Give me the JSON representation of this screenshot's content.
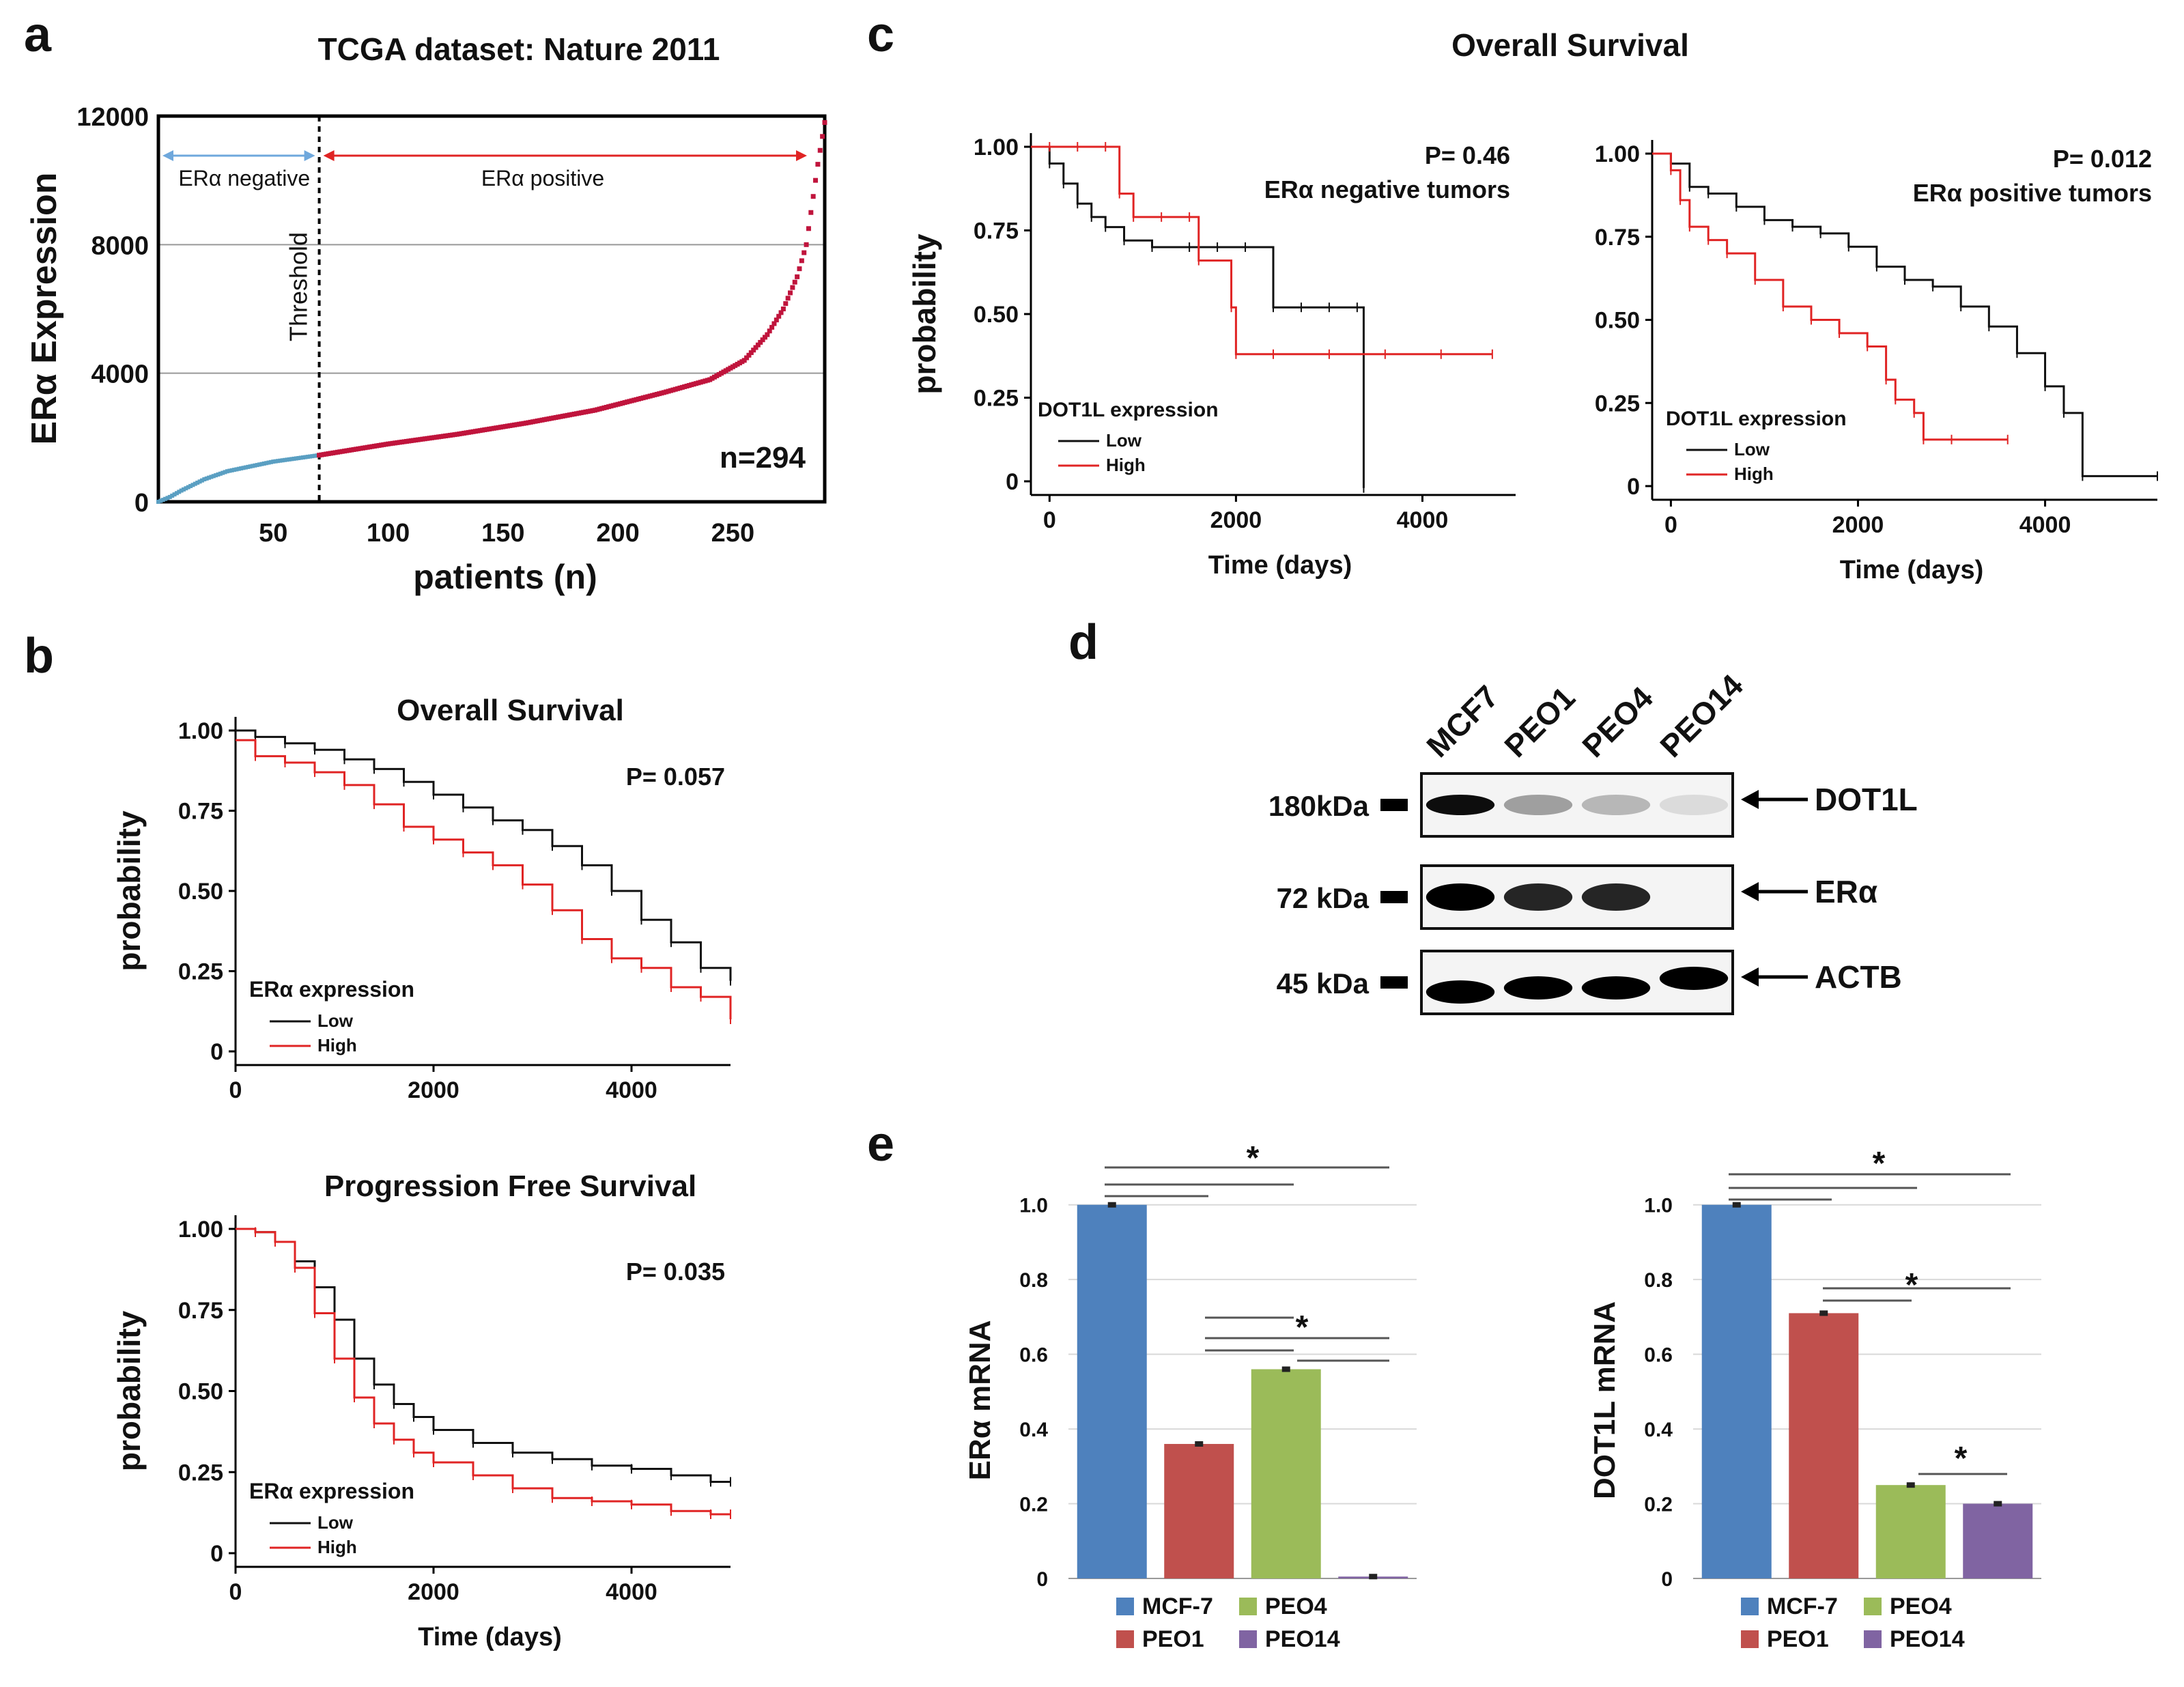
{
  "panels": {
    "a": "a",
    "b": "b",
    "c": "c",
    "d": "d",
    "e": "e"
  },
  "colors": {
    "low": "#111111",
    "high": "#e02424",
    "er_neg": "#5a9fc2",
    "er_pos": "#c0143c",
    "mcf7": "#4e81bd",
    "peo1": "#c0504d",
    "peo4": "#9bbb59",
    "peo14": "#8064a2",
    "arrow_neg": "#6fa8dc",
    "arrow_pos": "#e02424"
  },
  "chart_data": [
    {
      "id": "a",
      "type": "scatter",
      "title": "TCGA dataset: Nature 2011",
      "xlabel": "patients (n)",
      "ylabel": "ERα Expression",
      "xlim": [
        0,
        290
      ],
      "ylim": [
        0,
        12000
      ],
      "xticks": [
        "50",
        "100",
        "150",
        "200",
        "250"
      ],
      "yticks": [
        "0",
        "4000",
        "8000",
        "12000"
      ],
      "threshold_x": 70,
      "threshold_label": "Threshold",
      "neg_label": "ERα negative",
      "pos_label": "ERα positive",
      "n_label": "n=294",
      "neg_curve_x": [
        0,
        5,
        10,
        20,
        30,
        40,
        50,
        60,
        70
      ],
      "neg_curve_y": [
        0,
        150,
        350,
        700,
        950,
        1100,
        1250,
        1350,
        1450
      ],
      "pos_curve_x": [
        70,
        100,
        130,
        160,
        190,
        220,
        240,
        255,
        265,
        272,
        278,
        282,
        285,
        287,
        290
      ],
      "pos_curve_y": [
        1450,
        1800,
        2100,
        2450,
        2850,
        3400,
        3800,
        4400,
        5200,
        6000,
        7000,
        8000,
        9500,
        10500,
        11800
      ]
    },
    {
      "id": "b1",
      "type": "line",
      "title": "Overall Survival",
      "pvalue": "P= 0.057",
      "ylabel": "probability",
      "xlabel": "",
      "xlim": [
        0,
        5000
      ],
      "ylim": [
        0,
        1
      ],
      "xticks": [
        "0",
        "2000",
        "4000"
      ],
      "yticks": [
        "0",
        "0.25",
        "0.50",
        "0.75",
        "1.00"
      ],
      "legend_title": "ERα expression",
      "legend": [
        "Low",
        "High"
      ],
      "series": [
        {
          "name": "Low",
          "x": [
            0,
            200,
            500,
            800,
            1100,
            1400,
            1700,
            2000,
            2300,
            2600,
            2900,
            3200,
            3500,
            3800,
            4100,
            4400,
            4700,
            5000
          ],
          "y": [
            1.0,
            0.98,
            0.96,
            0.94,
            0.91,
            0.88,
            0.84,
            0.8,
            0.76,
            0.72,
            0.69,
            0.64,
            0.58,
            0.5,
            0.41,
            0.34,
            0.26,
            0.22
          ]
        },
        {
          "name": "High",
          "x": [
            0,
            200,
            500,
            800,
            1100,
            1400,
            1700,
            2000,
            2300,
            2600,
            2900,
            3200,
            3500,
            3800,
            4100,
            4400,
            4700,
            5000
          ],
          "y": [
            0.97,
            0.92,
            0.9,
            0.87,
            0.83,
            0.77,
            0.7,
            0.66,
            0.62,
            0.58,
            0.52,
            0.44,
            0.35,
            0.29,
            0.26,
            0.2,
            0.17,
            0.1
          ]
        }
      ]
    },
    {
      "id": "b2",
      "type": "line",
      "title": "Progression Free Survival",
      "pvalue": "P= 0.035",
      "ylabel": "probability",
      "xlabel": "Time (days)",
      "xlim": [
        0,
        5000
      ],
      "ylim": [
        0,
        1
      ],
      "xticks": [
        "0",
        "2000",
        "4000"
      ],
      "yticks": [
        "0",
        "0.25",
        "0.50",
        "0.75",
        "1.00"
      ],
      "legend_title": "ERα expression",
      "legend": [
        "Low",
        "High"
      ],
      "series": [
        {
          "name": "Low",
          "x": [
            0,
            200,
            400,
            600,
            800,
            1000,
            1200,
            1400,
            1600,
            1800,
            2000,
            2400,
            2800,
            3200,
            3600,
            4000,
            4400,
            4800,
            5000
          ],
          "y": [
            1.0,
            0.99,
            0.96,
            0.9,
            0.82,
            0.72,
            0.6,
            0.52,
            0.46,
            0.42,
            0.38,
            0.34,
            0.31,
            0.29,
            0.27,
            0.26,
            0.24,
            0.22,
            0.22
          ]
        },
        {
          "name": "High",
          "x": [
            0,
            200,
            400,
            600,
            800,
            1000,
            1200,
            1400,
            1600,
            1800,
            2000,
            2400,
            2800,
            3200,
            3600,
            4000,
            4400,
            4800,
            5000
          ],
          "y": [
            1.0,
            0.99,
            0.96,
            0.88,
            0.74,
            0.6,
            0.48,
            0.4,
            0.35,
            0.31,
            0.28,
            0.24,
            0.2,
            0.17,
            0.16,
            0.15,
            0.13,
            0.12,
            0.12
          ]
        }
      ]
    },
    {
      "id": "c1",
      "type": "line",
      "title": "Overall Survival",
      "pvalue": "P= 0.46",
      "subtitle": "ERα negative tumors",
      "ylabel": "probability",
      "xlabel": "Time (days)",
      "xlim": [
        -200,
        5000
      ],
      "ylim": [
        0,
        1.03
      ],
      "xticks": [
        "0",
        "2000",
        "4000"
      ],
      "yticks": [
        "0",
        "0.25",
        "0.50",
        "0.75",
        "1.00"
      ],
      "legend_title": "DOT1L expression",
      "legend": [
        "Low",
        "High"
      ],
      "series": [
        {
          "name": "Low",
          "x": [
            -200,
            0,
            150,
            300,
            450,
            600,
            800,
            1100,
            1500,
            1800,
            2100,
            2400,
            2700,
            3000,
            3300,
            3370
          ],
          "y": [
            1.0,
            0.95,
            0.89,
            0.83,
            0.79,
            0.76,
            0.72,
            0.7,
            0.7,
            0.7,
            0.7,
            0.52,
            0.52,
            0.52,
            0.52,
            -0.02
          ]
        },
        {
          "name": "High",
          "x": [
            -200,
            0,
            300,
            600,
            750,
            900,
            1200,
            1500,
            1600,
            1950,
            2000,
            2400,
            3000,
            3600,
            4200,
            4750
          ],
          "y": [
            1.0,
            1.0,
            1.0,
            1.0,
            0.86,
            0.79,
            0.79,
            0.79,
            0.66,
            0.52,
            0.38,
            0.38,
            0.38,
            0.38,
            0.38,
            0.38
          ]
        }
      ]
    },
    {
      "id": "c2",
      "type": "line",
      "title": "",
      "pvalue": "P= 0.012",
      "subtitle": "ERα positive tumors",
      "ylabel": "",
      "xlabel": "Time (days)",
      "xlim": [
        -200,
        5200
      ],
      "ylim": [
        0,
        1.03
      ],
      "xticks": [
        "0",
        "2000",
        "4000"
      ],
      "yticks": [
        "0",
        "0.25",
        "0.50",
        "0.75",
        "1.00"
      ],
      "legend_title": "DOT1L expression",
      "legend": [
        "Low",
        "High"
      ],
      "series": [
        {
          "name": "Low",
          "x": [
            -200,
            0,
            200,
            400,
            700,
            1000,
            1300,
            1600,
            1900,
            2200,
            2500,
            2800,
            3100,
            3400,
            3700,
            4000,
            4200,
            4400,
            5200
          ],
          "y": [
            1.0,
            0.97,
            0.9,
            0.88,
            0.84,
            0.8,
            0.78,
            0.76,
            0.72,
            0.66,
            0.62,
            0.6,
            0.54,
            0.48,
            0.4,
            0.3,
            0.22,
            0.03,
            0.03
          ]
        },
        {
          "name": "High",
          "x": [
            -200,
            0,
            100,
            200,
            400,
            600,
            900,
            1200,
            1500,
            1800,
            2100,
            2300,
            2400,
            2600,
            2700,
            3000,
            3600
          ],
          "y": [
            1.0,
            0.95,
            0.86,
            0.78,
            0.74,
            0.7,
            0.62,
            0.54,
            0.5,
            0.46,
            0.42,
            0.32,
            0.26,
            0.22,
            0.14,
            0.14,
            0.14
          ]
        }
      ]
    },
    {
      "id": "e1",
      "type": "bar",
      "ylabel": "ERα mRNA",
      "categories": [
        "MCF-7",
        "PEO1",
        "PEO4",
        "PEO14"
      ],
      "values": [
        1.0,
        0.36,
        0.56,
        0.005
      ],
      "ylim": [
        0,
        1.1
      ],
      "yticks": [
        "0",
        "0.2",
        "0.4",
        "0.6",
        "0.8",
        "1.0"
      ],
      "sig": "*"
    },
    {
      "id": "e2",
      "type": "bar",
      "ylabel": "DOT1L mRNA",
      "categories": [
        "MCF-7",
        "PEO1",
        "PEO4",
        "PEO14"
      ],
      "values": [
        1.0,
        0.71,
        0.25,
        0.2
      ],
      "ylim": [
        0,
        1.1
      ],
      "yticks": [
        "0",
        "0.2",
        "0.4",
        "0.6",
        "0.8",
        "1.0"
      ],
      "sig": "*"
    }
  ],
  "blot": {
    "lanes": [
      "MCF7",
      "PEO1",
      "PEO4",
      "PEO14"
    ],
    "rows": [
      {
        "kda": "180kDa",
        "protein": "DOT1L",
        "intensity": [
          0.95,
          0.35,
          0.25,
          0.1
        ]
      },
      {
        "kda": "72 kDa",
        "protein": "ERα",
        "intensity": [
          1.0,
          0.85,
          0.85,
          0.0
        ]
      },
      {
        "kda": "45 kDa",
        "protein": "ACTB",
        "intensity": [
          1.0,
          1.0,
          1.0,
          1.0
        ]
      }
    ]
  }
}
